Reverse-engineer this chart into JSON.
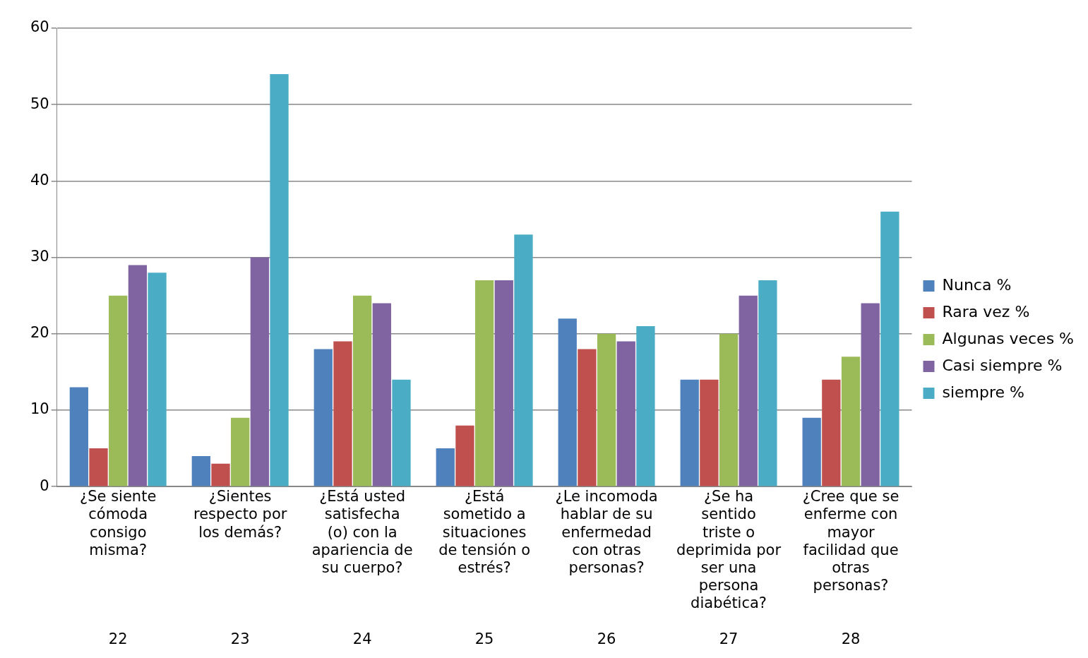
{
  "chart_data": {
    "type": "bar",
    "categories": [
      "¿Se siente cómoda consigo misma?\n22",
      "¿Sientes respecto por los demás?\n23",
      "¿Está usted satisfecha (o) con la apariencia de su cuerpo?\n24",
      "¿Está sometido a situaciones de tensión o estrés?\n25",
      "¿Le incomoda hablar de su enfermedad con otras personas?\n26",
      "¿Se ha sentido triste o deprimida por ser una persona diabética?\n27",
      "¿Cree que se enferme con mayor facilidad que otras personas?\n28"
    ],
    "series": [
      {
        "name": "Nunca %",
        "color": "#4f81bd",
        "values": [
          13,
          4,
          18,
          5,
          22,
          14,
          9
        ]
      },
      {
        "name": "Rara vez %",
        "color": "#c0504d",
        "values": [
          5,
          3,
          19,
          8,
          18,
          14,
          14
        ]
      },
      {
        "name": "Algunas veces %",
        "color": "#9bbb59",
        "values": [
          25,
          9,
          25,
          27,
          20,
          20,
          17
        ]
      },
      {
        "name": "Casi siempre %",
        "color": "#8064a2",
        "values": [
          29,
          30,
          24,
          27,
          19,
          25,
          24
        ]
      },
      {
        "name": "siempre %",
        "color": "#4bacc6",
        "values": [
          28,
          54,
          14,
          33,
          21,
          27,
          36
        ]
      }
    ],
    "ylim": [
      0,
      60
    ],
    "yticks": [
      0,
      10,
      20,
      30,
      40,
      50,
      60
    ],
    "grid": "y",
    "legend": "right"
  }
}
